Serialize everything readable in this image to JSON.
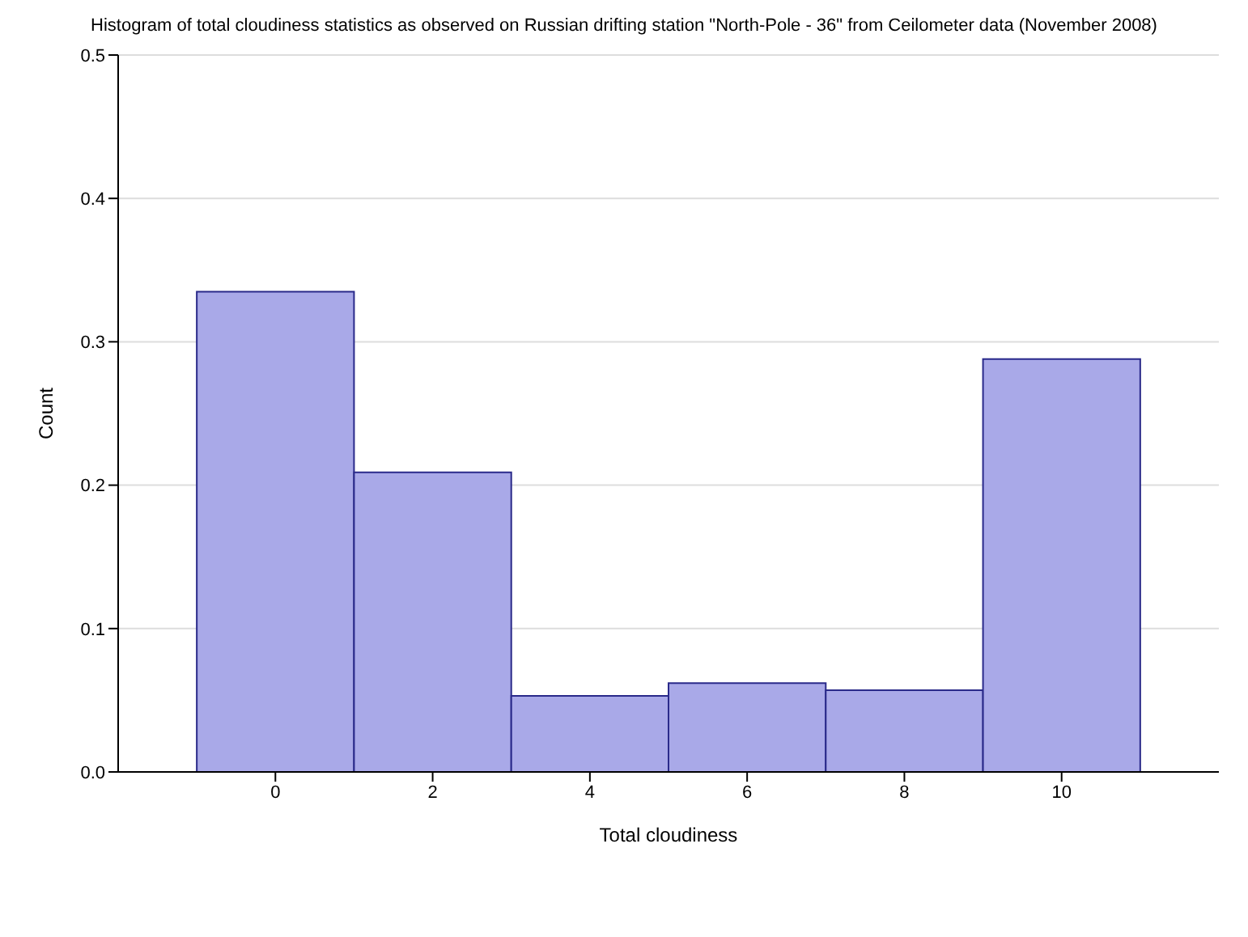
{
  "chart_data": {
    "type": "histogram",
    "title": "Histogram of total cloudiness statistics as observed on Russian drifting station \"North-Pole - 36\" from Ceilometer data (November 2008)",
    "xlabel": "Total cloudiness",
    "ylabel": "Count",
    "bins": [
      -1,
      1,
      3,
      5,
      7,
      9,
      11
    ],
    "values": [
      0.335,
      0.209,
      0.053,
      0.062,
      0.057,
      0.288
    ],
    "color": "#a9a9e8",
    "xlim": [
      -2,
      12
    ],
    "xticks": [
      0,
      2,
      4,
      6,
      8,
      10
    ],
    "ylim": [
      0,
      0.5
    ],
    "yticks": [
      {
        "value": 0,
        "label": "0.0"
      },
      0.1,
      0.2,
      0.3,
      0.4,
      0.5
    ],
    "grid": "y"
  }
}
